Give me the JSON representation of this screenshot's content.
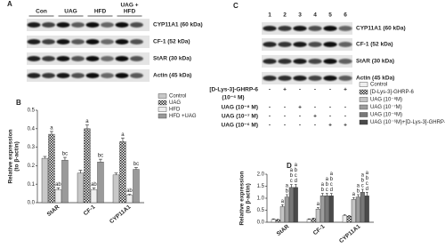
{
  "panel_labels": [
    "A",
    "B",
    "C",
    "D"
  ],
  "blot_a": {
    "lanes": [
      "Con",
      "UAG",
      "HFD",
      [
        "UAG +",
        "HFD"
      ]
    ],
    "bands": [
      "CYP11A1 (60 kDa)",
      "CF-1 (52 kDa)",
      "StAR (30 kDa)",
      "Actin (45 kDa)"
    ]
  },
  "blot_c": {
    "lanes": [
      "1",
      "2",
      "3",
      "4",
      "5",
      "6"
    ],
    "bands": [
      "CYP11A1 (60 kDa)",
      "CF-1 (52 kDa)",
      "StAR (30 kDa)",
      "Actin (45 kDa)"
    ],
    "treatments": [
      {
        "label": "[D-Lys-3]-GHRP-6",
        "sublabel": "(10⁻⁶ M)",
        "signs": [
          "-",
          "+",
          "-",
          "-",
          "-",
          "+"
        ]
      },
      {
        "label": "UAG (10⁻⁸ M)",
        "signs": [
          "-",
          "-",
          "+",
          "-",
          "-",
          "-"
        ]
      },
      {
        "label": "UAG (10⁻⁷ M)",
        "signs": [
          "-",
          "-",
          "-",
          "+",
          "-",
          "-"
        ]
      },
      {
        "label": "UAG (10⁻⁶ M)",
        "signs": [
          "-",
          "-",
          "-",
          "-",
          "+",
          "+"
        ]
      }
    ]
  },
  "chart_data": [
    {
      "type": "bar",
      "ylabel": [
        "Relative expression",
        "(to β-actin)"
      ],
      "categories": [
        "StAR",
        "CF-1",
        "CYP11A1"
      ],
      "ylim": [
        0,
        0.5
      ],
      "yticks": [
        {
          "value": 0,
          "label": "0.0"
        },
        0.1,
        0.2,
        0.3,
        0.4,
        0.5
      ],
      "series": [
        {
          "name": "Control",
          "color": "#c8c8c8",
          "values": [
            0.24,
            0.16,
            0.15
          ],
          "errors": [
            0.01,
            0.015,
            0.01
          ]
        },
        {
          "name": "UAG",
          "color": "#555555",
          "pattern": "checker",
          "values": [
            0.37,
            0.4,
            0.33
          ],
          "errors": [
            0.015,
            0.02,
            0.02
          ],
          "annotations": [
            "a",
            "a",
            "a"
          ]
        },
        {
          "name": "HFD",
          "color": "#eeeeee",
          "values": [
            0.07,
            0.07,
            0.04
          ],
          "errors": [
            0.01,
            0.01,
            0.005
          ],
          "annotations": [
            "ab",
            "ab",
            "ab"
          ]
        },
        {
          "name": "HFD +UAG",
          "color": "#9a9a9a",
          "values": [
            0.23,
            0.22,
            0.18
          ],
          "errors": [
            0.015,
            0.015,
            0.01
          ],
          "annotations": [
            "bc",
            "bc",
            "bc"
          ]
        }
      ]
    },
    {
      "type": "bar",
      "ylabel": [
        "Relative expression",
        "(to β-actin)"
      ],
      "categories": [
        "StAR",
        "CF-1",
        "CYP11A1"
      ],
      "ylim": [
        0,
        2
      ],
      "yticks": [
        {
          "value": 0,
          "label": "0.0"
        },
        0.5,
        {
          "value": 1,
          "label": "1.0"
        },
        1.5,
        {
          "value": 2,
          "label": "2.0"
        }
      ],
      "series": [
        {
          "name": "Control",
          "color": "#eeeeee",
          "values": [
            0.12,
            0.12,
            0.28
          ],
          "errors": [
            0.02,
            0.02,
            0.03
          ]
        },
        {
          "name": "[D-Lys-3]-GHRP-6",
          "color": "#555555",
          "pattern": "checker",
          "values": [
            0.1,
            0.15,
            0.25
          ],
          "errors": [
            0.02,
            0.02,
            0.03
          ]
        },
        {
          "name": "UAG  (10⁻⁸M)",
          "color": "#c4c4c4",
          "values": [
            0.65,
            0.55,
            0.95
          ],
          "errors": [
            0.08,
            0.06,
            0.08
          ],
          "annotations": [
            [
              "a"
            ],
            [
              "a"
            ],
            [
              "a"
            ]
          ]
        },
        {
          "name": "UAG  (10⁻⁷M)",
          "color": "#9c9c9c",
          "values": [
            1.05,
            1.1,
            1.05
          ],
          "errors": [
            0.1,
            0.1,
            0.1
          ],
          "annotations": [
            [
              "a",
              "b"
            ],
            [
              "a",
              "b"
            ],
            [
              "a",
              "b"
            ]
          ]
        },
        {
          "name": "UAG  (10⁻⁶M)",
          "color": "#777777",
          "values": [
            1.45,
            1.1,
            1.25
          ],
          "errors": [
            0.12,
            0.1,
            0.12
          ],
          "annotations": [
            [
              "a",
              "b",
              "c"
            ],
            [
              "a",
              "b",
              "c"
            ],
            [
              "a",
              "b",
              "c"
            ]
          ]
        },
        {
          "name": "UAG  (10⁻⁶M)+[D-Lys-3]-GHRP-6",
          "color": "#4a4a4a",
          "values": [
            1.45,
            1.1,
            1.1
          ],
          "errors": [
            0.12,
            0.1,
            0.15
          ],
          "annotations": [
            [
              "a",
              "b",
              "c",
              "d"
            ],
            [
              "a",
              "b",
              "c",
              "d"
            ],
            [
              "a",
              "b",
              "c",
              "d"
            ]
          ]
        }
      ]
    }
  ]
}
